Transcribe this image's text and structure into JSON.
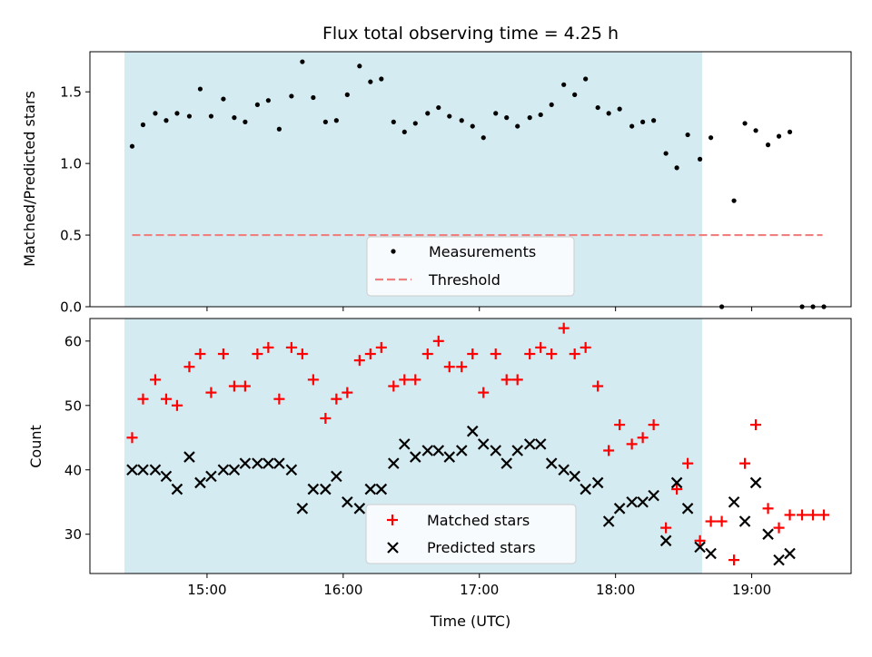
{
  "chart_data": [
    {
      "type": "scatter",
      "title": "Flux total observing time = 4.25 h",
      "ylabel": "Matched/Predicted stars",
      "ylim": [
        0,
        1.78
      ],
      "xlim": [
        14.14,
        19.73
      ],
      "yticks": [
        0.0,
        0.5,
        1.0,
        1.5
      ],
      "ytick_labels": [
        "0.0",
        "0.5",
        "1.0",
        "1.5"
      ],
      "xticks": [
        15,
        16,
        17,
        18,
        19
      ],
      "observing_window": [
        14.45,
        18.7
      ],
      "observing_window_color": "#add8e6",
      "threshold": {
        "name": "Threshold",
        "value": 0.5,
        "x_range": [
          14.45,
          19.52
        ],
        "color": "#f08080"
      },
      "legend": {
        "placement": "lower-center",
        "entries": [
          "Measurements",
          "Threshold"
        ]
      },
      "series": [
        {
          "name": "Measurements",
          "color": "#000000",
          "marker": "dot",
          "x": [
            14.45,
            14.53,
            14.62,
            14.7,
            14.78,
            14.87,
            14.95,
            15.03,
            15.12,
            15.2,
            15.28,
            15.37,
            15.45,
            15.53,
            15.62,
            15.7,
            15.78,
            15.87,
            15.95,
            16.03,
            16.12,
            16.2,
            16.28,
            16.37,
            16.45,
            16.53,
            16.62,
            16.7,
            16.78,
            16.87,
            16.95,
            17.03,
            17.12,
            17.2,
            17.28,
            17.37,
            17.45,
            17.53,
            17.62,
            17.7,
            17.78,
            17.87,
            17.95,
            18.03,
            18.12,
            18.2,
            18.28,
            18.37,
            18.45,
            18.53,
            18.62,
            18.7,
            18.78,
            18.87,
            18.95,
            19.03,
            19.12,
            19.2,
            19.28,
            19.37,
            19.45,
            19.53
          ],
          "y": [
            1.12,
            1.27,
            1.35,
            1.3,
            1.35,
            1.33,
            1.52,
            1.33,
            1.45,
            1.32,
            1.29,
            1.41,
            1.44,
            1.24,
            1.47,
            1.71,
            1.46,
            1.29,
            1.3,
            1.48,
            1.68,
            1.57,
            1.59,
            1.29,
            1.22,
            1.28,
            1.35,
            1.39,
            1.33,
            1.3,
            1.26,
            1.18,
            1.35,
            1.32,
            1.26,
            1.32,
            1.34,
            1.41,
            1.55,
            1.48,
            1.59,
            1.39,
            1.35,
            1.38,
            1.26,
            1.29,
            1.3,
            1.07,
            0.97,
            1.2,
            1.03,
            1.18,
            0.0,
            0.74,
            1.28,
            1.23,
            1.13,
            1.19,
            1.22,
            0.0,
            0.0,
            0.0
          ]
        }
      ]
    },
    {
      "type": "scatter",
      "xlabel": "Time (UTC)",
      "ylabel": "Count",
      "ylim": [
        23.9,
        63.5
      ],
      "xlim": [
        14.14,
        19.73
      ],
      "yticks": [
        30,
        40,
        50,
        60
      ],
      "ytick_labels": [
        "30",
        "40",
        "50",
        "60"
      ],
      "xticks": [
        15,
        16,
        17,
        18,
        19
      ],
      "xtick_labels": [
        "15:00",
        "16:00",
        "17:00",
        "18:00",
        "19:00"
      ],
      "observing_window": [
        14.45,
        18.7
      ],
      "observing_window_color": "#add8e6",
      "legend": {
        "placement": "lower-center",
        "entries": [
          "Matched stars",
          "Predicted stars"
        ]
      },
      "series": [
        {
          "name": "Matched stars",
          "color": "#ff0000",
          "marker": "plus",
          "x": [
            14.45,
            14.53,
            14.62,
            14.7,
            14.78,
            14.87,
            14.95,
            15.03,
            15.12,
            15.2,
            15.28,
            15.37,
            15.45,
            15.53,
            15.62,
            15.7,
            15.78,
            15.87,
            15.95,
            16.03,
            16.12,
            16.2,
            16.28,
            16.37,
            16.45,
            16.53,
            16.62,
            16.7,
            16.78,
            16.87,
            16.95,
            17.03,
            17.12,
            17.2,
            17.28,
            17.37,
            17.45,
            17.53,
            17.62,
            17.7,
            17.78,
            17.87,
            17.95,
            18.03,
            18.12,
            18.2,
            18.28,
            18.37,
            18.45,
            18.53,
            18.62,
            18.7,
            18.78,
            18.87,
            18.95,
            19.03,
            19.12,
            19.2,
            19.28,
            19.37,
            19.45,
            19.53
          ],
          "y": [
            45,
            51,
            54,
            51,
            50,
            56,
            58,
            52,
            58,
            53,
            53,
            58,
            59,
            51,
            59,
            58,
            54,
            48,
            51,
            52,
            57,
            58,
            59,
            53,
            54,
            54,
            58,
            60,
            56,
            56,
            58,
            52,
            58,
            54,
            54,
            58,
            59,
            58,
            62,
            58,
            59,
            53,
            43,
            47,
            44,
            45,
            47,
            31,
            37,
            41,
            29,
            32,
            32,
            26,
            41,
            47,
            34,
            31,
            33,
            33,
            33,
            33
          ]
        },
        {
          "name": "Predicted stars",
          "color": "#000000",
          "marker": "x",
          "x": [
            14.45,
            14.53,
            14.62,
            14.7,
            14.78,
            14.87,
            14.95,
            15.03,
            15.12,
            15.2,
            15.28,
            15.37,
            15.45,
            15.53,
            15.62,
            15.7,
            15.78,
            15.87,
            15.95,
            16.03,
            16.12,
            16.2,
            16.28,
            16.37,
            16.45,
            16.53,
            16.62,
            16.7,
            16.78,
            16.87,
            16.95,
            17.03,
            17.12,
            17.2,
            17.28,
            17.37,
            17.45,
            17.53,
            17.62,
            17.7,
            17.78,
            17.87,
            17.95,
            18.03,
            18.12,
            18.2,
            18.28,
            18.37,
            18.45,
            18.53,
            18.62,
            18.7,
            18.87,
            18.95,
            19.03,
            19.12,
            19.2,
            19.28
          ],
          "y": [
            40,
            40,
            40,
            39,
            37,
            42,
            38,
            39,
            40,
            40,
            41,
            41,
            41,
            41,
            40,
            34,
            37,
            37,
            39,
            35,
            34,
            37,
            37,
            41,
            44,
            42,
            43,
            43,
            42,
            43,
            46,
            44,
            43,
            41,
            43,
            44,
            44,
            41,
            40,
            39,
            37,
            38,
            32,
            34,
            35,
            35,
            36,
            29,
            38,
            34,
            28,
            27,
            35,
            32,
            38,
            30,
            26,
            27
          ]
        }
      ]
    }
  ]
}
